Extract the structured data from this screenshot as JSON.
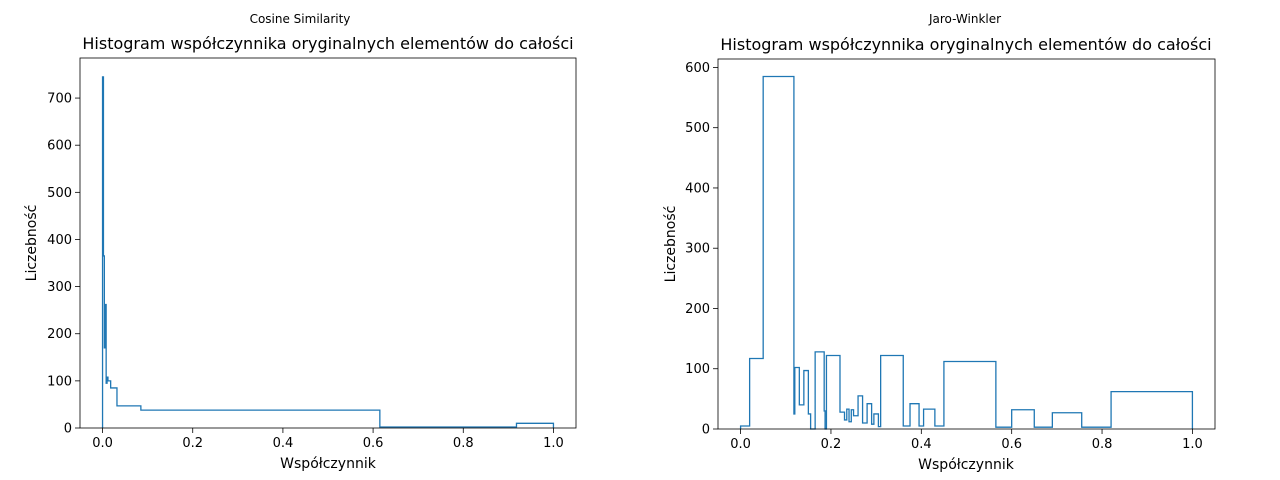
{
  "charts": [
    {
      "suptitle": "Cosine Similarity",
      "chart_data": {
        "type": "step-histogram",
        "title": "Histogram współczynnika oryginalnych elementów do całości",
        "xlabel": "Współczynnik",
        "ylabel": "Liczebność",
        "xlim": [
          -0.05,
          1.05
        ],
        "ylim": [
          0,
          785
        ],
        "xticks": [
          0.0,
          0.2,
          0.4,
          0.6,
          0.8,
          1.0
        ],
        "xtick_labels": [
          "0.0",
          "0.2",
          "0.4",
          "0.6",
          "0.8",
          "1.0"
        ],
        "yticks": [
          0,
          100,
          200,
          300,
          400,
          500,
          600,
          700
        ],
        "ytick_labels": [
          "0",
          "100",
          "200",
          "300",
          "400",
          "500",
          "600",
          "700"
        ],
        "color": "#1f77b4",
        "bins": [
          {
            "x0": 0.0,
            "x1": 0.002,
            "count": 745
          },
          {
            "x0": 0.002,
            "x1": 0.004,
            "count": 365
          },
          {
            "x0": 0.004,
            "x1": 0.006,
            "count": 170
          },
          {
            "x0": 0.006,
            "x1": 0.008,
            "count": 262
          },
          {
            "x0": 0.008,
            "x1": 0.01,
            "count": 95
          },
          {
            "x0": 0.01,
            "x1": 0.012,
            "count": 108
          },
          {
            "x0": 0.012,
            "x1": 0.018,
            "count": 100
          },
          {
            "x0": 0.018,
            "x1": 0.032,
            "count": 85
          },
          {
            "x0": 0.032,
            "x1": 0.085,
            "count": 47
          },
          {
            "x0": 0.085,
            "x1": 0.615,
            "count": 38
          },
          {
            "x0": 0.615,
            "x1": 0.918,
            "count": 2
          },
          {
            "x0": 0.918,
            "x1": 1.0,
            "count": 10
          }
        ]
      }
    },
    {
      "suptitle": "Jaro-Winkler",
      "chart_data": {
        "type": "step-histogram",
        "title": "Histogram współczynnika oryginalnych elementów do całości",
        "xlabel": "Współczynnik",
        "ylabel": "Liczebność",
        "xlim": [
          -0.05,
          1.05
        ],
        "ylim": [
          0,
          614
        ],
        "xticks": [
          0.0,
          0.2,
          0.4,
          0.6,
          0.8,
          1.0
        ],
        "xtick_labels": [
          "0.0",
          "0.2",
          "0.4",
          "0.6",
          "0.8",
          "1.0"
        ],
        "yticks": [
          0,
          100,
          200,
          300,
          400,
          500,
          600
        ],
        "ytick_labels": [
          "0",
          "100",
          "200",
          "300",
          "400",
          "500",
          "600"
        ],
        "color": "#1f77b4",
        "bins": [
          {
            "x0": 0.0,
            "x1": 0.02,
            "count": 5
          },
          {
            "x0": 0.02,
            "x1": 0.05,
            "count": 117
          },
          {
            "x0": 0.05,
            "x1": 0.118,
            "count": 585
          },
          {
            "x0": 0.118,
            "x1": 0.12,
            "count": 25
          },
          {
            "x0": 0.12,
            "x1": 0.13,
            "count": 102
          },
          {
            "x0": 0.13,
            "x1": 0.14,
            "count": 40
          },
          {
            "x0": 0.14,
            "x1": 0.15,
            "count": 97
          },
          {
            "x0": 0.15,
            "x1": 0.155,
            "count": 25
          },
          {
            "x0": 0.155,
            "x1": 0.165,
            "count": 0
          },
          {
            "x0": 0.165,
            "x1": 0.185,
            "count": 128
          },
          {
            "x0": 0.185,
            "x1": 0.187,
            "count": 30
          },
          {
            "x0": 0.187,
            "x1": 0.19,
            "count": 0
          },
          {
            "x0": 0.19,
            "x1": 0.22,
            "count": 122
          },
          {
            "x0": 0.22,
            "x1": 0.23,
            "count": 28
          },
          {
            "x0": 0.23,
            "x1": 0.235,
            "count": 15
          },
          {
            "x0": 0.235,
            "x1": 0.24,
            "count": 33
          },
          {
            "x0": 0.24,
            "x1": 0.245,
            "count": 12
          },
          {
            "x0": 0.245,
            "x1": 0.25,
            "count": 32
          },
          {
            "x0": 0.25,
            "x1": 0.26,
            "count": 22
          },
          {
            "x0": 0.26,
            "x1": 0.27,
            "count": 55
          },
          {
            "x0": 0.27,
            "x1": 0.28,
            "count": 10
          },
          {
            "x0": 0.28,
            "x1": 0.29,
            "count": 42
          },
          {
            "x0": 0.29,
            "x1": 0.295,
            "count": 8
          },
          {
            "x0": 0.295,
            "x1": 0.305,
            "count": 25
          },
          {
            "x0": 0.305,
            "x1": 0.31,
            "count": 4
          },
          {
            "x0": 0.31,
            "x1": 0.36,
            "count": 122
          },
          {
            "x0": 0.36,
            "x1": 0.375,
            "count": 5
          },
          {
            "x0": 0.375,
            "x1": 0.395,
            "count": 42
          },
          {
            "x0": 0.395,
            "x1": 0.405,
            "count": 5
          },
          {
            "x0": 0.405,
            "x1": 0.43,
            "count": 33
          },
          {
            "x0": 0.43,
            "x1": 0.45,
            "count": 5
          },
          {
            "x0": 0.45,
            "x1": 0.565,
            "count": 112
          },
          {
            "x0": 0.565,
            "x1": 0.6,
            "count": 3
          },
          {
            "x0": 0.6,
            "x1": 0.65,
            "count": 32
          },
          {
            "x0": 0.65,
            "x1": 0.69,
            "count": 3
          },
          {
            "x0": 0.69,
            "x1": 0.755,
            "count": 27
          },
          {
            "x0": 0.755,
            "x1": 0.82,
            "count": 3
          },
          {
            "x0": 0.82,
            "x1": 1.0,
            "count": 62
          }
        ]
      }
    }
  ]
}
